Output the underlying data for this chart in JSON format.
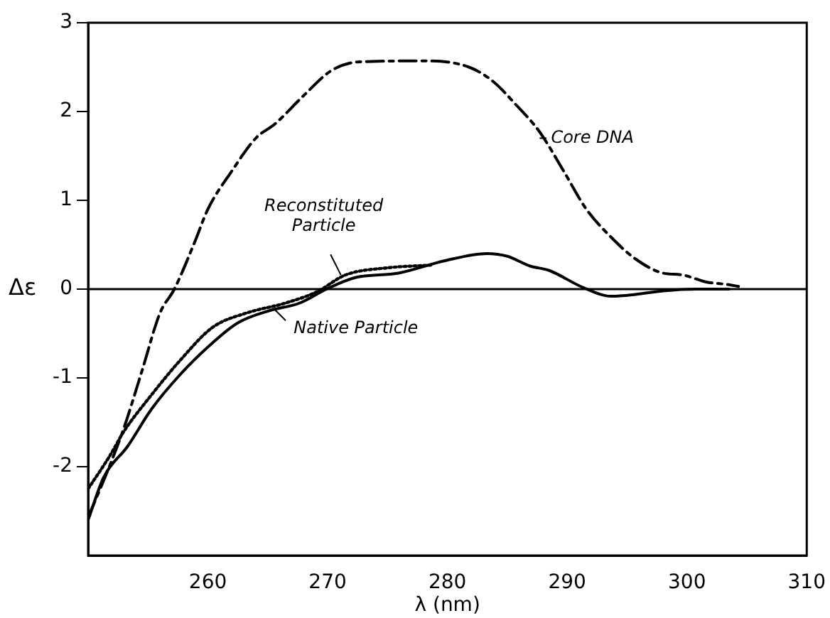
{
  "chart_data": {
    "type": "line",
    "xlabel": "λ (nm)",
    "ylabel": "Δε",
    "xlim": [
      250,
      310
    ],
    "xticks": [
      260,
      270,
      280,
      290,
      300,
      310
    ],
    "ylim": [
      -3,
      3
    ],
    "yticks": [
      -2,
      -1,
      0,
      1,
      2,
      3
    ],
    "grid": false,
    "legend": false,
    "marker": "none",
    "series": [
      {
        "color": "#000000",
        "line_style": "dashed",
        "x": [
          250,
          251.8,
          253,
          254.5,
          256,
          257.2,
          258.9,
          260,
          262,
          264,
          265.6,
          268,
          270.3,
          272.7,
          278.2,
          281.8,
          283.8,
          285.7,
          287.7,
          289.7,
          291.6,
          293.7,
          295.7,
          298,
          299.6,
          301.6,
          303.5,
          304.3
        ],
        "values": [
          -2.57,
          -1.99,
          -1.56,
          -0.92,
          -0.27,
          0,
          0.53,
          0.9,
          1.33,
          1.7,
          1.86,
          2.18,
          2.46,
          2.56,
          2.57,
          2.5,
          2.34,
          2.08,
          1.77,
          1.33,
          0.9,
          0.58,
          0.34,
          0.18,
          0.16,
          0.08,
          0.05,
          0.03
        ]
      },
      {
        "color": "#000000",
        "line_style": "solid",
        "x": [
          250,
          251.3,
          253.3,
          255.3,
          257.7,
          260.1,
          262.5,
          265.2,
          267.6,
          269.9,
          272.3,
          275.9,
          279.8,
          283.3,
          285,
          286.9,
          288.5,
          291.3,
          293.7,
          295.7,
          298,
          300.8,
          303.5
        ],
        "values": [
          -2.6,
          -2.12,
          -1.77,
          -1.35,
          -0.96,
          -0.64,
          -0.38,
          -0.24,
          -0.16,
          0,
          0.13,
          0.18,
          0.32,
          0.4,
          0.37,
          0.26,
          0.21,
          0.02,
          -0.08,
          -0.06,
          -0.02,
          0,
          0
        ]
      },
      {
        "color": "#000000",
        "line_style": "dotted",
        "x": [
          250,
          251.8,
          253,
          255.3,
          257.7,
          260.4,
          263.2,
          266.4,
          269.1,
          271.5,
          275,
          278.6
        ],
        "values": [
          -2.25,
          -1.88,
          -1.6,
          -1.19,
          -0.8,
          -0.43,
          -0.27,
          -0.16,
          -0.03,
          0.16,
          0.24,
          0.27
        ]
      }
    ],
    "ref_lines": [
      {
        "axis": "y",
        "value": 0,
        "color": "#000000",
        "line_style": "solid"
      }
    ],
    "annotations": [
      {
        "text": "Core DNA",
        "x": 287.7,
        "y": 1.7
      },
      {
        "text": "Reconstituted Particle",
        "x": 271.1,
        "y": 0.16
      },
      {
        "text": "Native Particle",
        "x": 265.5,
        "y": -0.22
      }
    ]
  }
}
